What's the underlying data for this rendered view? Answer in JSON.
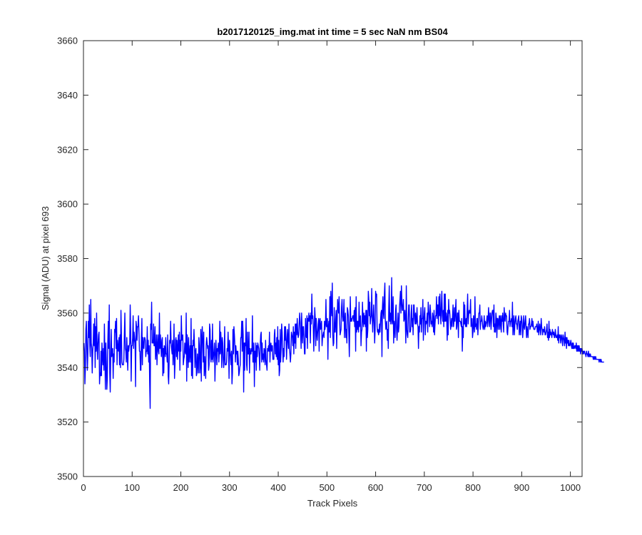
{
  "chart_data": {
    "type": "line",
    "title": "b2017120125_img.mat int time = 5 sec  NaN nm BS04",
    "xlabel": "Track Pixels",
    "ylabel": "Signal (ADU) at pixel 693",
    "xlim": [
      0,
      1024
    ],
    "ylim": [
      3500,
      3660
    ],
    "xticks": [
      0,
      100,
      200,
      300,
      400,
      500,
      600,
      700,
      800,
      900,
      1000
    ],
    "yticks": [
      3500,
      3520,
      3540,
      3560,
      3580,
      3600,
      3620,
      3640,
      3660
    ],
    "grid": false,
    "box": true,
    "line_color": "#0000ff",
    "series": [
      {
        "x_start": 1,
        "x_step": 1,
        "values": [
          3549,
          3546,
          3534,
          3540,
          3554,
          3557,
          3547,
          3539,
          3545,
          3557,
          3551,
          3563,
          3548,
          3544,
          3565,
          3549,
          3547,
          3538,
          3546,
          3549,
          3556,
          3548,
          3558,
          3540,
          3555,
          3546,
          3560,
          3548,
          3543,
          3549,
          3552,
          3553,
          3534,
          3538,
          3537,
          3546,
          3537,
          3549,
          3544,
          3541,
          3547,
          3539,
          3556,
          3545,
          3532,
          3549,
          3542,
          3532,
          3536,
          3549,
          3557,
          3547,
          3563,
          3538,
          3531,
          3545,
          3554,
          3544,
          3546,
          3547,
          3536,
          3545,
          3542,
          3554,
          3553,
          3557,
          3547,
          3558,
          3541,
          3550,
          3547,
          3546,
          3551,
          3541,
          3552,
          3540,
          3561,
          3552,
          3542,
          3541,
          3541,
          3541,
          3543,
          3552,
          3560,
          3547,
          3546,
          3542,
          3551,
          3545,
          3539,
          3548,
          3546,
          3548,
          3549,
          3563,
          3553,
          3535,
          3548,
          3548,
          3551,
          3559,
          3547,
          3553,
          3551,
          3549,
          3533,
          3557,
          3555,
          3550,
          3555,
          3555,
          3559,
          3553,
          3546,
          3546,
          3539,
          3539,
          3551,
          3558,
          3541,
          3551,
          3548,
          3547,
          3551,
          3551,
          3550,
          3544,
          3546,
          3546,
          3555,
          3545,
          3550,
          3542,
          3548,
          3534,
          3525,
          3556,
          3554,
          3564,
          3549,
          3550,
          3549,
          3556,
          3548,
          3548,
          3555,
          3543,
          3546,
          3552,
          3541,
          3548,
          3552,
          3546,
          3545,
          3560,
          3547,
          3552,
          3548,
          3544,
          3550,
          3551,
          3537,
          3547,
          3538,
          3548,
          3547,
          3544,
          3551,
          3545,
          3545,
          3542,
          3552,
          3537,
          3534,
          3542,
          3550,
          3549,
          3557,
          3549,
          3547,
          3545,
          3550,
          3541,
          3546,
          3556,
          3536,
          3541,
          3550,
          3551,
          3544,
          3550,
          3543,
          3547,
          3552,
          3546,
          3553,
          3539,
          3550,
          3546,
          3559,
          3550,
          3551,
          3552,
          3541,
          3543,
          3544,
          3549,
          3546,
          3545,
          3560,
          3535,
          3552,
          3547,
          3540,
          3551,
          3542,
          3545,
          3548,
          3542,
          3558,
          3537,
          3548,
          3536,
          3550,
          3548,
          3554,
          3548,
          3540,
          3546,
          3547,
          3537,
          3538,
          3545,
          3541,
          3538,
          3551,
          3548,
          3538,
          3541,
          3554,
          3535,
          3551,
          3555,
          3549,
          3542,
          3553,
          3537,
          3544,
          3540,
          3536,
          3548,
          3551,
          3549,
          3547,
          3548,
          3539,
          3541,
          3556,
          3554,
          3544,
          3542,
          3550,
          3543,
          3556,
          3542,
          3544,
          3546,
          3549,
          3535,
          3543,
          3550,
          3546,
          3541,
          3547,
          3546,
          3549,
          3542,
          3546,
          3557,
          3545,
          3553,
          3549,
          3540,
          3551,
          3549,
          3543,
          3540,
          3544,
          3555,
          3541,
          3541,
          3541,
          3542,
          3547,
          3546,
          3553,
          3547,
          3536,
          3550,
          3546,
          3544,
          3541,
          3546,
          3534,
          3538,
          3554,
          3545,
          3555,
          3552,
          3548,
          3542,
          3548,
          3545,
          3546,
          3541,
          3546,
          3543,
          3537,
          3538,
          3540,
          3541,
          3551,
          3551,
          3557,
          3546,
          3557,
          3552,
          3531,
          3549,
          3539,
          3549,
          3548,
          3558,
          3541,
          3539,
          3553,
          3545,
          3545,
          3553,
          3538,
          3547,
          3545,
          3545,
          3547,
          3546,
          3559,
          3542,
          3542,
          3549,
          3533,
          3546,
          3542,
          3549,
          3539,
          3548,
          3544,
          3549,
          3548,
          3547,
          3544,
          3539,
          3548,
          3552,
          3553,
          3542,
          3549,
          3543,
          3545,
          3542,
          3547,
          3546,
          3541,
          3550,
          3543,
          3541,
          3539,
          3547,
          3546,
          3548,
          3546,
          3553,
          3542,
          3548,
          3549,
          3546,
          3548,
          3548,
          3543,
          3543,
          3543,
          3552,
          3554,
          3545,
          3549,
          3544,
          3551,
          3543,
          3555,
          3541,
          3550,
          3537,
          3539,
          3554,
          3542,
          3547,
          3556,
          3553,
          3547,
          3542,
          3547,
          3544,
          3555,
          3550,
          3555,
          3551,
          3543,
          3549,
          3554,
          3550,
          3547,
          3556,
          3547,
          3545,
          3542,
          3545,
          3553,
          3552,
          3551,
          3548,
          3555,
          3545,
          3553,
          3549,
          3556,
          3547,
          3556,
          3552,
          3558,
          3553,
          3551,
          3552,
          3556,
          3560,
          3557,
          3552,
          3547,
          3560,
          3554,
          3549,
          3555,
          3555,
          3550,
          3545,
          3545,
          3558,
          3552,
          3551,
          3559,
          3547,
          3558,
          3557,
          3560,
          3557,
          3559,
          3549,
          3560,
          3556,
          3567,
          3558,
          3559,
          3555,
          3546,
          3554,
          3562,
          3558,
          3548,
          3558,
          3553,
          3550,
          3553,
          3556,
          3558,
          3546,
          3557,
          3558,
          3554,
          3555,
          3557,
          3548,
          3551,
          3552,
          3553,
          3551,
          3557,
          3554,
          3556,
          3565,
          3555,
          3555,
          3558,
          3543,
          3555,
          3557,
          3553,
          3566,
          3551,
          3568,
          3562,
          3559,
          3571,
          3552,
          3548,
          3549,
          3562,
          3553,
          3553,
          3558,
          3561,
          3547,
          3557,
          3565,
          3562,
          3560,
          3566,
          3558,
          3552,
          3553,
          3554,
          3562,
          3565,
          3559,
          3557,
          3558,
          3565,
          3551,
          3557,
          3560,
          3551,
          3554,
          3549,
          3562,
          3561,
          3559,
          3552,
          3544,
          3555,
          3566,
          3557,
          3558,
          3557,
          3558,
          3559,
          3559,
          3557,
          3561,
          3555,
          3562,
          3546,
          3566,
          3553,
          3557,
          3554,
          3557,
          3553,
          3564,
          3555,
          3558,
          3559,
          3548,
          3553,
          3554,
          3564,
          3558,
          3555,
          3560,
          3556,
          3559,
          3555,
          3561,
          3546,
          3561,
          3551,
          3554,
          3568,
          3565,
          3559,
          3564,
          3556,
          3558,
          3559,
          3569,
          3559,
          3553,
          3558,
          3563,
          3557,
          3549,
          3554,
          3568,
          3566,
          3567,
          3555,
          3553,
          3554,
          3552,
          3553,
          3556,
          3553,
          3557,
          3560,
          3561,
          3544,
          3562,
          3566,
          3560,
          3558,
          3567,
          3571,
          3557,
          3554,
          3556,
          3557,
          3550,
          3554,
          3547,
          3562,
          3570,
          3557,
          3560,
          3556,
          3558,
          3573,
          3556,
          3558,
          3566,
          3549,
          3557,
          3555,
          3551,
          3561,
          3563,
          3554,
          3550,
          3555,
          3560,
          3553,
          3555,
          3562,
          3565,
          3568,
          3560,
          3570,
          3564,
          3561,
          3561,
          3565,
          3557,
          3558,
          3561,
          3557,
          3549,
          3570,
          3554,
          3552,
          3551,
          3558,
          3563,
          3563,
          3553,
          3553,
          3554,
          3560,
          3563,
          3555,
          3558,
          3552,
          3563,
          3563,
          3558,
          3556,
          3560,
          3556,
          3557,
          3562,
          3556,
          3555,
          3547,
          3555,
          3553,
          3559,
          3556,
          3562,
          3553,
          3558,
          3558,
          3565,
          3550,
          3557,
          3560,
          3562,
          3552,
          3557,
          3556,
          3557,
          3560,
          3553,
          3564,
          3561,
          3559,
          3555,
          3563,
          3560,
          3556,
          3557,
          3555,
          3560,
          3558,
          3553,
          3561,
          3552,
          3556,
          3559,
          3559,
          3566,
          3558,
          3563,
          3563,
          3556,
          3566,
          3559,
          3567,
          3560,
          3556,
          3563,
          3568,
          3559,
          3557,
          3561,
          3555,
          3567,
          3557,
          3567,
          3557,
          3560,
          3558,
          3550,
          3561,
          3552,
          3565,
          3560,
          3561,
          3558,
          3554,
          3556,
          3558,
          3555,
          3559,
          3563,
          3555,
          3557,
          3562,
          3557,
          3561,
          3565,
          3554,
          3555,
          3560,
          3560,
          3551,
          3561,
          3557,
          3557,
          3557,
          3556,
          3555,
          3558,
          3546,
          3555,
          3551,
          3564,
          3556,
          3563,
          3556,
          3555,
          3558,
          3555,
          3561,
          3567,
          3556,
          3559,
          3561,
          3560,
          3560,
          3565,
          3555,
          3557,
          3558,
          3551,
          3553,
          3559,
          3555,
          3553,
          3566,
          3555,
          3556,
          3554,
          3558,
          3558,
          3552,
          3556,
          3560,
          3560,
          3563,
          3554,
          3557,
          3557,
          3559,
          3557,
          3555,
          3554,
          3555,
          3559,
          3554,
          3557,
          3555,
          3556,
          3557,
          3559,
          3555,
          3558,
          3562,
          3557,
          3555,
          3560,
          3560,
          3554,
          3557,
          3560,
          3561,
          3561,
          3555,
          3563,
          3553,
          3556,
          3553,
          3560,
          3558,
          3551,
          3558,
          3558,
          3554,
          3557,
          3559,
          3554,
          3559,
          3557,
          3553,
          3559,
          3557,
          3560,
          3556,
          3553,
          3562,
          3558,
          3557,
          3560,
          3559,
          3559,
          3553,
          3552,
          3555,
          3557,
          3557,
          3561,
          3555,
          3557,
          3557,
          3558,
          3555,
          3564,
          3552,
          3555,
          3559,
          3552,
          3556,
          3558,
          3559,
          3556,
          3556,
          3554,
          3557,
          3558,
          3559,
          3552,
          3554,
          3557,
          3552,
          3559,
          3558,
          3556,
          3551,
          3554,
          3559,
          3555,
          3554,
          3557,
          3559,
          3555,
          3551,
          3555,
          3553,
          3551,
          3556,
          3556,
          3558,
          3554,
          3555,
          3555,
          3556,
          3558,
          3555,
          3557,
          3555,
          3554,
          3554,
          3554,
          3555,
          3555,
          3555,
          3556,
          3553,
          3553,
          3557,
          3552,
          3554,
          3556,
          3554,
          3552,
          3558,
          3555,
          3554,
          3552,
          3554,
          3554,
          3553,
          3555,
          3552,
          3552,
          3553,
          3554,
          3556,
          3551,
          3553,
          3550,
          3557,
          3551,
          3554,
          3552,
          3553,
          3552,
          3551,
          3554,
          3553,
          3552,
          3553,
          3551,
          3551,
          3554,
          3552,
          3551,
          3551,
          3552,
          3550,
          3555,
          3549,
          3552,
          3551,
          3552,
          3549,
          3551,
          3552,
          3550,
          3548,
          3552,
          3551,
          3550,
          3548,
          3553,
          3549,
          3551,
          3547,
          3551,
          3549,
          3550,
          3548,
          3550,
          3548,
          3548,
          3549,
          3550,
          3548,
          3547,
          3549,
          3547,
          3549,
          3547,
          3547,
          3548,
          3548,
          3547,
          3549,
          3546,
          3548,
          3546,
          3548,
          3546,
          3548,
          3546,
          3547,
          3545,
          3547,
          3546,
          3547,
          3545,
          3546,
          3545,
          3546,
          3546,
          3545,
          3545,
          3544,
          3546,
          3545,
          3545,
          3544,
          3546,
          3544,
          3545,
          3544,
          3545,
          3544,
          3544,
          3544,
          3544,
          3544,
          3543,
          3544,
          3543,
          3544,
          3543,
          3544,
          3543,
          3543,
          3543,
          3543,
          3543,
          3543,
          3542,
          3543,
          3543,
          3542,
          3543,
          3542,
          3542,
          3542,
          3542,
          3542,
          3542
        ]
      }
    ]
  }
}
